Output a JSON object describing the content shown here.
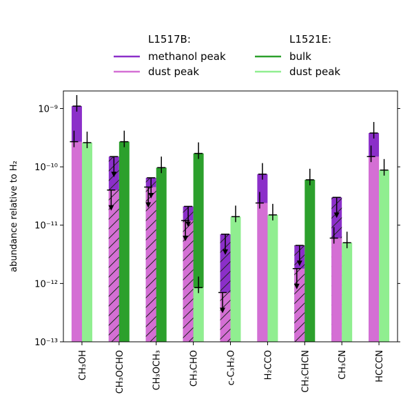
{
  "chart_data": {
    "type": "bar",
    "log_scale_y": true,
    "ylim": [
      1e-13,
      2e-09
    ],
    "ylabel": "abundance relative to H₂",
    "xlabel": "",
    "title": "",
    "yticks": [
      {
        "value": 1e-09,
        "label": "10⁻⁹"
      },
      {
        "value": 1e-10,
        "label": "10⁻¹⁰"
      },
      {
        "value": 1e-11,
        "label": "10⁻¹¹"
      },
      {
        "value": 1e-12,
        "label": "10⁻¹²"
      },
      {
        "value": 1e-13,
        "label": "10⁻¹³"
      }
    ],
    "categories": [
      "CH₃OH",
      "CH₃OCHO",
      "CH₃OCH₃",
      "CH₃CHO",
      "c-C₃H₂O",
      "H₂CCO",
      "CH₂CHCN",
      "CH₃CN",
      "HCCCN"
    ],
    "legend": {
      "placement": "top",
      "groups": [
        {
          "title": "L1517B:",
          "entries": [
            {
              "name": "methanol peak",
              "color": "#8b2fc9"
            },
            {
              "name": "dust peak",
              "color": "#d46fd4"
            }
          ]
        },
        {
          "title": "L1521E:",
          "entries": [
            {
              "name": "bulk",
              "color": "#2ca02c"
            },
            {
              "name": "dust peak",
              "color": "#90ee90"
            }
          ]
        }
      ]
    },
    "series": [
      {
        "name": "methanol peak",
        "group": "L1517B",
        "color": "#8b2fc9",
        "values": [
          1.1e-09,
          1.5e-10,
          6.5e-11,
          2.1e-11,
          7e-12,
          7.5e-11,
          4.5e-12,
          3e-11,
          3.8e-10
        ],
        "upper_limit": [
          false,
          true,
          true,
          true,
          true,
          false,
          true,
          true,
          false
        ]
      },
      {
        "name": "dust peak",
        "group": "L1517B",
        "color": "#d46fd4",
        "values": [
          2.7e-10,
          4e-11,
          4.5e-11,
          1.2e-11,
          7e-13,
          2.4e-11,
          1.8e-12,
          6e-12,
          1.5e-10
        ],
        "upper_limit": [
          false,
          true,
          true,
          true,
          true,
          false,
          true,
          false,
          false
        ]
      },
      {
        "name": "bulk",
        "group": "L1521E",
        "color": "#2ca02c",
        "values": [
          null,
          2.7e-10,
          9.7e-11,
          1.7e-10,
          null,
          null,
          6e-11,
          null,
          null
        ],
        "upper_limit": [
          false,
          false,
          false,
          false,
          false,
          false,
          false,
          false,
          false
        ]
      },
      {
        "name": "dust peak",
        "group": "L1521E",
        "color": "#90ee90",
        "values": [
          2.6e-10,
          null,
          null,
          8.5e-13,
          1.4e-11,
          1.5e-11,
          null,
          5e-12,
          8.8e-11
        ],
        "upper_limit": [
          false,
          false,
          false,
          false,
          false,
          false,
          false,
          false,
          false
        ]
      }
    ],
    "grid": false
  }
}
